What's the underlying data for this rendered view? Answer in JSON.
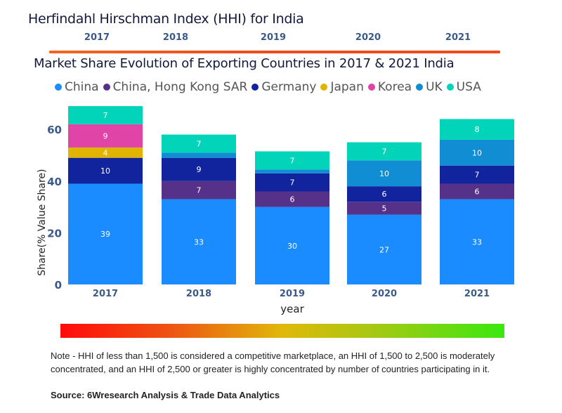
{
  "hhi": {
    "title": "Herfindahl Hirschman Index (HHI) for India",
    "years": [
      "2017",
      "2018",
      "2019",
      "2020",
      "2021"
    ],
    "line_color": "#f04a1c"
  },
  "chart_data": {
    "type": "bar",
    "stacked": true,
    "title": "Market Share Evolution of Exporting Countries in 2017 & 2021 India",
    "xlabel": "year",
    "ylabel": "Share(% Value Share)",
    "categories": [
      "2017",
      "2018",
      "2019",
      "2020",
      "2021"
    ],
    "ylim": [
      0,
      70
    ],
    "yticks": [
      0,
      20,
      40,
      60
    ],
    "grid": false,
    "legend_position": "top",
    "series": [
      {
        "name": "China",
        "color": "#1a8cff",
        "values": [
          39,
          33,
          30,
          27,
          33
        ],
        "labels": [
          "39",
          "33",
          "30",
          "27",
          "33"
        ]
      },
      {
        "name": "China, Hong Kong SAR",
        "color": "#55318a",
        "values": [
          0,
          7,
          6,
          5,
          6
        ],
        "labels": [
          "",
          "7",
          "6",
          "5",
          "6"
        ]
      },
      {
        "name": "Germany",
        "color": "#12239e",
        "values": [
          10,
          9,
          7,
          6,
          7
        ],
        "labels": [
          "10",
          "9",
          "7",
          "6",
          "7"
        ]
      },
      {
        "name": "Japan",
        "color": "#e0b400",
        "values": [
          4,
          0,
          0,
          0,
          0
        ],
        "labels": [
          "4",
          "",
          "",
          "",
          ""
        ]
      },
      {
        "name": "Korea",
        "color": "#e044a7",
        "values": [
          9,
          0,
          0,
          0,
          0
        ],
        "labels": [
          "9",
          "",
          "",
          "",
          ""
        ]
      },
      {
        "name": "UK",
        "color": "#118dd4",
        "values": [
          0,
          2,
          1.5,
          10,
          10
        ],
        "labels": [
          "",
          "",
          "",
          "10",
          "10"
        ]
      },
      {
        "name": "USA",
        "color": "#01d4b9",
        "values": [
          7,
          7,
          7,
          7,
          8
        ],
        "labels": [
          "7",
          "7",
          "7",
          "7",
          "8"
        ]
      }
    ]
  },
  "scale": {
    "low_color": "#ff0a0a",
    "mid_color": "#e0b80a",
    "high_color": "#3ae810"
  },
  "footer": {
    "note": "Note - HHI of less than 1,500 is considered a competitive marketplace, an HHI of 1,500 to 2,500 is moderately concentrated, and an HHI of 2,500 or greater is highly concentrated by number of countries participating in it.",
    "source": "Source: 6Wresearch Analysis & Trade Data Analytics"
  }
}
